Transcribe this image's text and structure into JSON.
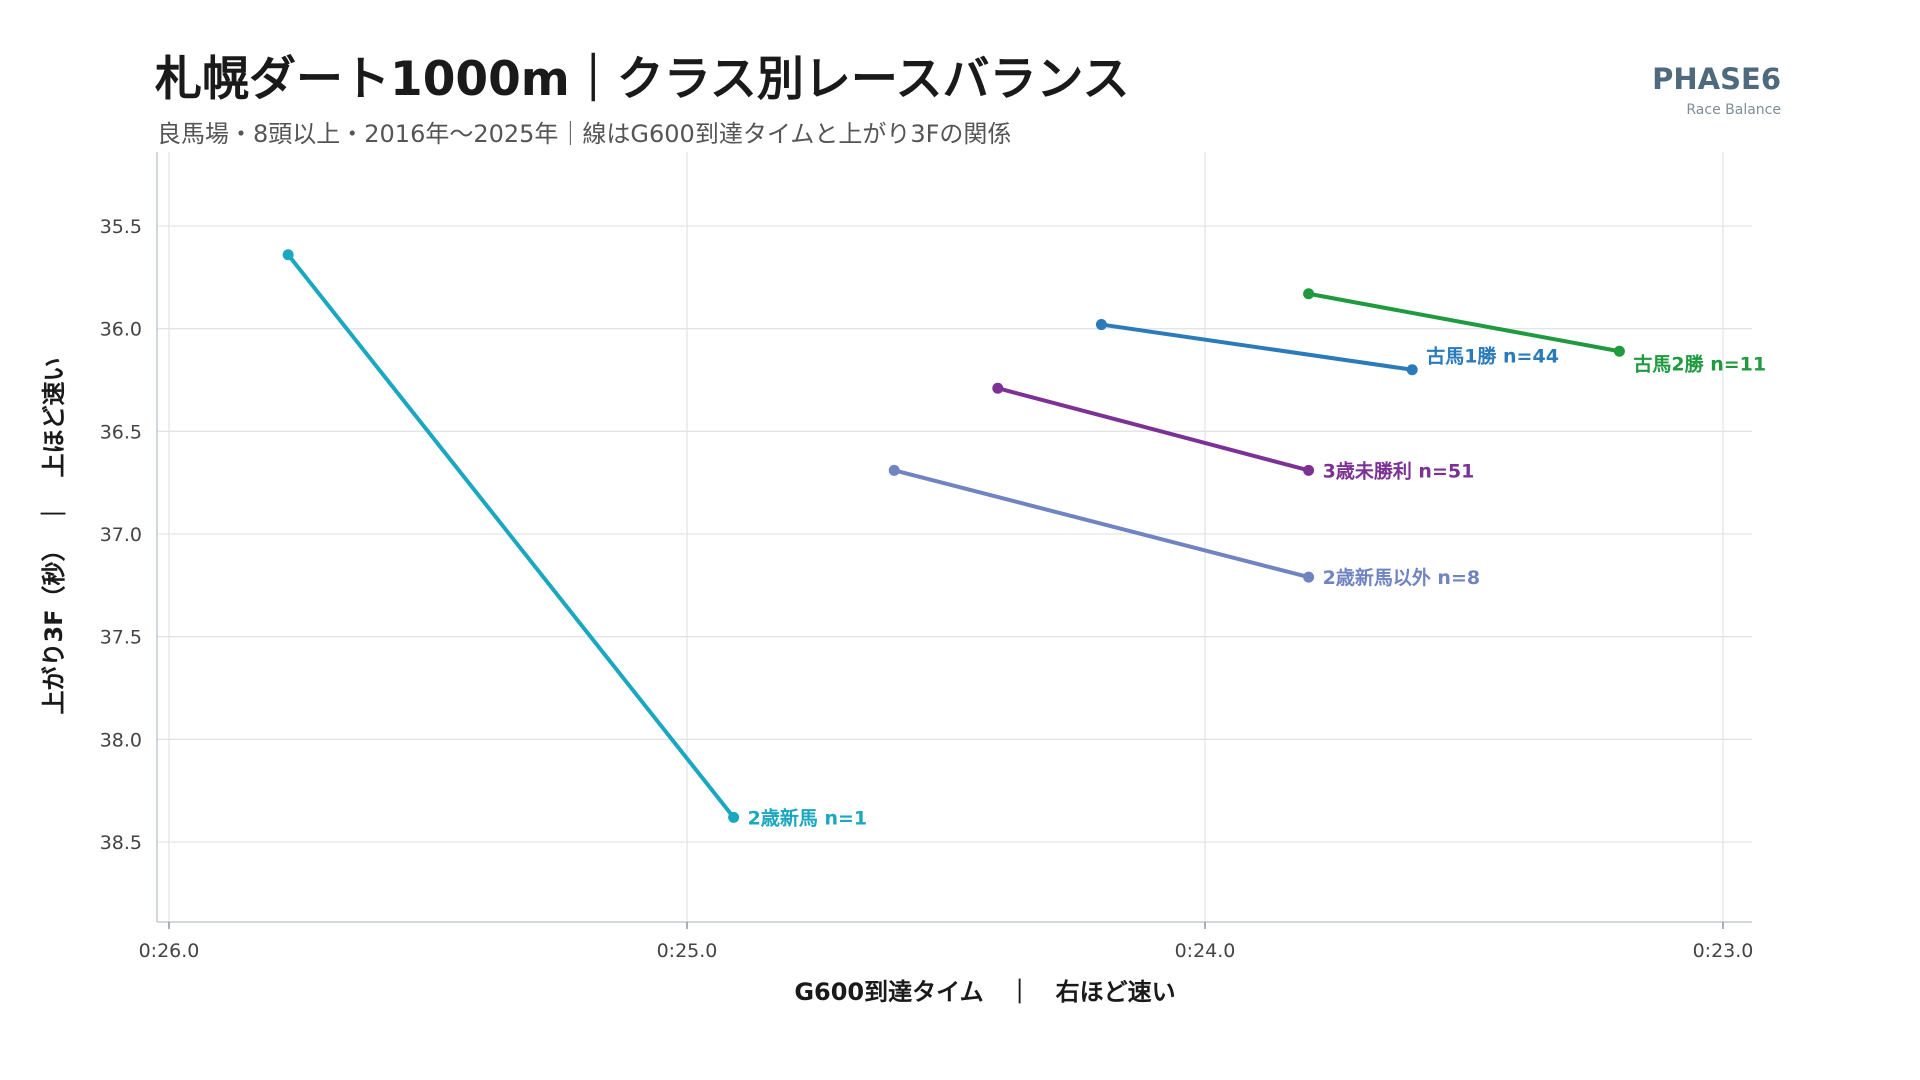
{
  "header": {
    "title": "札幌ダート1000m｜クラス別レースバランス",
    "subtitle": "良馬場・8頭以上・2016年〜2025年｜線はG600到達タイムと上がり3Fの関係",
    "brand": "PHASE6",
    "brand_sub": "Race Balance"
  },
  "chart_data": {
    "type": "line",
    "title": "札幌ダート1000m｜クラス別レースバランス",
    "subtitle": "良馬場・8頭以上・2016年〜2025年｜線はG600到達タイムと上がり3Fの関係",
    "xlabel": "G600到達タイム　｜　右ほど速い",
    "ylabel": "上がり3F（秒）　｜　上ほど速い",
    "xlim": [
      26.0,
      23.0
    ],
    "ylim": [
      38.5,
      35.5
    ],
    "x_reversed": true,
    "y_reversed": true,
    "x_ticks": [
      "0:26.0",
      "0:25.0",
      "0:24.0",
      "0:23.0"
    ],
    "y_ticks": [
      "35.5",
      "36.0",
      "36.5",
      "37.0",
      "37.5",
      "38.0",
      "38.5"
    ],
    "grid": true,
    "series": [
      {
        "name": "2歳新馬",
        "n": "n=1",
        "label": "2歳新馬  n=1",
        "color": "#1aa7bf",
        "x": [
          25.77,
          24.91
        ],
        "y": [
          35.64,
          38.38
        ]
      },
      {
        "name": "2歳新馬以外",
        "n": "n=8",
        "label": "2歳新馬以外  n=8",
        "color": "#6f84c0",
        "x": [
          24.6,
          23.8
        ],
        "y": [
          36.69,
          37.21
        ]
      },
      {
        "name": "3歳未勝利",
        "n": "n=51",
        "label": "3歳未勝利  n=51",
        "color": "#7b3294",
        "x": [
          24.4,
          23.8
        ],
        "y": [
          36.29,
          36.69
        ]
      },
      {
        "name": "古馬1勝",
        "n": "n=44",
        "label": "古馬1勝  n=44",
        "color": "#2b7bba",
        "x": [
          24.2,
          23.6
        ],
        "y": [
          35.98,
          36.2
        ]
      },
      {
        "name": "古馬2勝",
        "n": "n=11",
        "label": "古馬2勝  n=11",
        "color": "#1f9a3f",
        "x": [
          23.8,
          23.2
        ],
        "y": [
          35.83,
          36.11
        ]
      }
    ]
  }
}
